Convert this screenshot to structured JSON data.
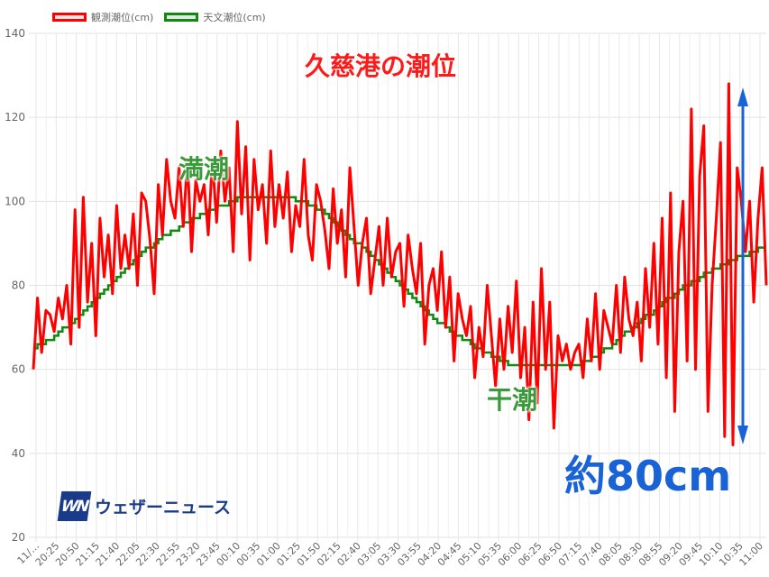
{
  "chart_data": {
    "type": "line",
    "title": "久慈港の潮位",
    "xlabel": "",
    "ylabel": "",
    "ylim": [
      20,
      140
    ],
    "yticks": [
      20,
      40,
      60,
      80,
      100,
      120,
      140
    ],
    "grid": true,
    "legend_position": "top-left",
    "x_tick_labels": [
      "11/…",
      "20:25",
      "20:50",
      "21:15",
      "21:40",
      "22:05",
      "22:30",
      "22:55",
      "23:20",
      "23:45",
      "00:10",
      "00:35",
      "01:00",
      "01:25",
      "01:50",
      "02:15",
      "02:40",
      "03:05",
      "03:30",
      "03:55",
      "04:20",
      "04:45",
      "05:10",
      "05:35",
      "06:00",
      "06:25",
      "06:50",
      "07:15",
      "07:40",
      "08:05",
      "08:30",
      "08:55",
      "09:20",
      "09:45",
      "10:10",
      "10:35",
      "11:00"
    ],
    "series": [
      {
        "name": "観測潮位(cm)",
        "color": "#ff0000",
        "interval_minutes": 5,
        "values": [
          60,
          77,
          64,
          74,
          73,
          69,
          77,
          72,
          80,
          66,
          98,
          70,
          101,
          76,
          90,
          68,
          96,
          82,
          92,
          78,
          99,
          84,
          92,
          84,
          97,
          80,
          102,
          100,
          91,
          78,
          104,
          92,
          110,
          100,
          96,
          108,
          94,
          110,
          88,
          105,
          100,
          104,
          92,
          110,
          95,
          112,
          100,
          108,
          88,
          119,
          97,
          113,
          86,
          110,
          98,
          104,
          90,
          112,
          94,
          104,
          96,
          107,
          88,
          99,
          94,
          110,
          92,
          86,
          104,
          100,
          93,
          84,
          103,
          90,
          98,
          82,
          108,
          94,
          80,
          90,
          96,
          78,
          86,
          94,
          80,
          96,
          82,
          88,
          90,
          75,
          92,
          84,
          78,
          90,
          66,
          80,
          84,
          74,
          88,
          70,
          82,
          62,
          78,
          72,
          68,
          75,
          58,
          70,
          63,
          80,
          68,
          56,
          72,
          60,
          75,
          64,
          81,
          58,
          70,
          48,
          76,
          52,
          84,
          60,
          76,
          46,
          68,
          62,
          66,
          60,
          64,
          66,
          58,
          72,
          62,
          78,
          60,
          74,
          70,
          66,
          80,
          64,
          82,
          72,
          68,
          76,
          62,
          84,
          70,
          90,
          66,
          96,
          58,
          102,
          50,
          88,
          100,
          62,
          122,
          60,
          106,
          118,
          50,
          80,
          96,
          114,
          44,
          128,
          42,
          108,
          100,
          88,
          100,
          76,
          96,
          108,
          80
        ]
      },
      {
        "name": "天文潮位(cm)",
        "color": "#118811",
        "interval_minutes": 25,
        "values": [
          65,
          68,
          72,
          77,
          82,
          87,
          91,
          94,
          97,
          99,
          101,
          101,
          101,
          100,
          97,
          92,
          88,
          83,
          78,
          73,
          69,
          66,
          63,
          61,
          61,
          61,
          61,
          63,
          67,
          71,
          75,
          79,
          82,
          85,
          87,
          89
        ]
      }
    ],
    "annotations": {
      "high_tide": "満潮",
      "low_tide": "干潮",
      "range": "約80cm",
      "range_color": "#1a63d6"
    }
  },
  "logo": {
    "mark": "WN",
    "text": "ウェザーニュース"
  }
}
